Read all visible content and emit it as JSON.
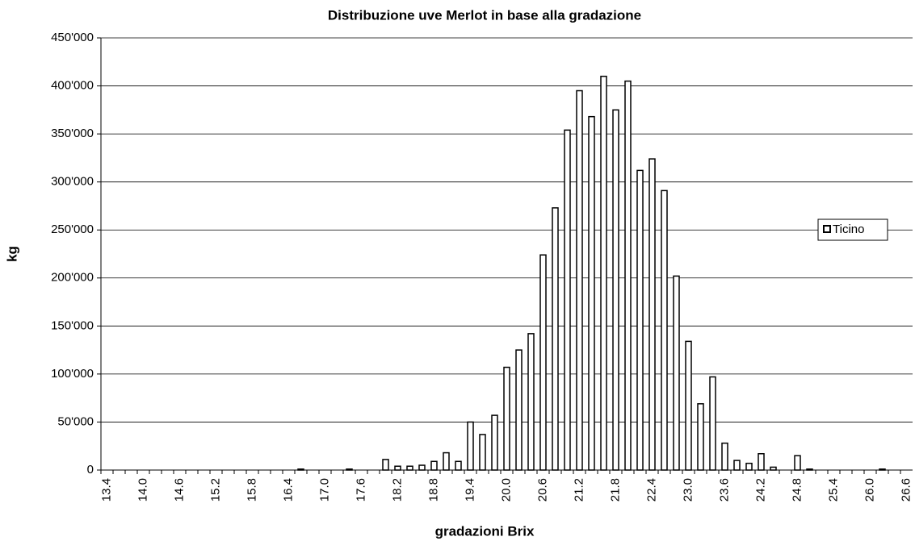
{
  "chart_data": {
    "type": "bar",
    "title": "Distribuzione uve Merlot in base alla gradazione",
    "x_label": "gradazioni Brix",
    "y_label": "kg",
    "categories": [
      "13.4",
      null,
      null,
      "14.0",
      null,
      null,
      "14.6",
      null,
      null,
      "15.2",
      null,
      null,
      "15.8",
      null,
      null,
      "16.4",
      null,
      null,
      "17.0",
      null,
      null,
      "17.6",
      null,
      null,
      "18.2",
      null,
      null,
      "18.8",
      null,
      null,
      "19.4",
      null,
      null,
      "20.0",
      null,
      null,
      "20.6",
      null,
      null,
      "21.2",
      null,
      null,
      "21.8",
      null,
      null,
      "22.4",
      null,
      null,
      "23.0",
      null,
      null,
      "23.6",
      null,
      null,
      "24.2",
      null,
      null,
      "24.8",
      null,
      null,
      "25.4",
      null,
      null,
      "26.0",
      null,
      null,
      "26.6"
    ],
    "series": [
      {
        "name": "Ticino",
        "color": "#ffffff",
        "values": [
          0,
          0,
          0,
          0,
          0,
          0,
          0,
          0,
          0,
          0,
          0,
          0,
          0,
          0,
          0,
          0,
          1000,
          0,
          0,
          0,
          1000,
          0,
          0,
          11000,
          4000,
          4000,
          5000,
          9000,
          18000,
          9000,
          50000,
          37000,
          57000,
          107000,
          125000,
          142000,
          224000,
          273000,
          354000,
          395000,
          368000,
          410000,
          375000,
          405000,
          312000,
          324000,
          291000,
          202000,
          134000,
          69000,
          97000,
          28000,
          10000,
          7000,
          17000,
          3000,
          0,
          15000,
          1000,
          0,
          0,
          0,
          0,
          0,
          1000,
          0,
          0
        ]
      }
    ],
    "ylim": [
      0,
      450000
    ],
    "yticks": [
      0,
      {
        "value": 50000,
        "label": "50'000"
      },
      {
        "value": 100000,
        "label": "100'000"
      },
      {
        "value": 150000,
        "label": "150'000"
      },
      {
        "value": 200000,
        "label": "200'000"
      },
      {
        "value": 250000,
        "label": "250'000"
      },
      {
        "value": 300000,
        "label": "300'000"
      },
      {
        "value": 350000,
        "label": "350'000"
      },
      {
        "value": 400000,
        "label": "400'000"
      },
      {
        "value": 450000,
        "label": "450'000"
      }
    ],
    "grid": true,
    "legend": "right"
  }
}
